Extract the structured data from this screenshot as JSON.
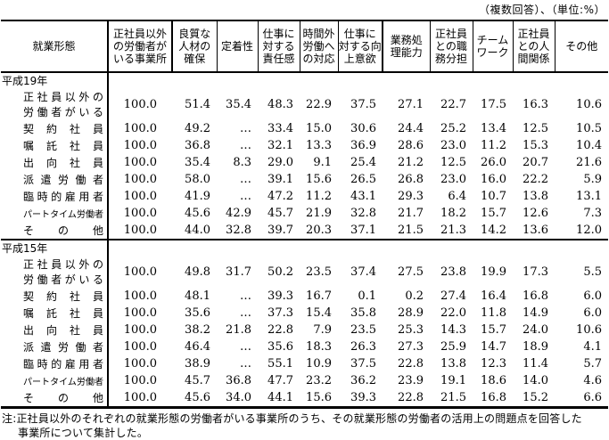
{
  "unit_note": "（複数回答）、（単位:%）",
  "table": {
    "corner_header": "就業形態",
    "columns": [
      "正社員以外\nの労働者が\nいる事業所",
      "良質な\n人材の\n確保",
      "定着性",
      "仕事に\n対する\n責任感",
      "時間外\n労働へ\nの対応",
      "仕事に\n対する向\n上意欲",
      "業務処\n理能力",
      "正社員\nとの職\n務分担",
      "チーム\nワーク",
      "正社員\nとの人\n間関係",
      "その他"
    ],
    "sections": [
      {
        "label": "平成19年",
        "rows": [
          {
            "label": "正社員以外の\n労働者がいる",
            "values": [
              "100.0",
              "51.4",
              "35.4",
              "48.3",
              "22.9",
              "37.5",
              "27.1",
              "22.7",
              "17.5",
              "16.3",
              "10.6"
            ]
          },
          {
            "label": "契約社員",
            "values": [
              "100.0",
              "49.2",
              "…",
              "33.4",
              "15.0",
              "30.6",
              "24.4",
              "25.2",
              "13.4",
              "12.5",
              "10.5"
            ]
          },
          {
            "label": "嘱託社員",
            "values": [
              "100.0",
              "36.8",
              "…",
              "32.1",
              "13.3",
              "36.9",
              "28.6",
              "23.0",
              "11.2",
              "15.3",
              "10.4"
            ]
          },
          {
            "label": "出向社員",
            "values": [
              "100.0",
              "35.4",
              "8.3",
              "29.0",
              "9.1",
              "25.4",
              "21.2",
              "12.5",
              "26.0",
              "20.7",
              "21.6"
            ]
          },
          {
            "label": "派遣労働者",
            "values": [
              "100.0",
              "58.0",
              "…",
              "39.1",
              "15.6",
              "26.5",
              "26.8",
              "23.0",
              "16.0",
              "22.2",
              "5.9"
            ]
          },
          {
            "label": "臨時的雇用者",
            "values": [
              "100.0",
              "41.9",
              "…",
              "47.2",
              "11.2",
              "43.1",
              "29.3",
              "6.4",
              "10.7",
              "13.8",
              "13.1"
            ]
          },
          {
            "label": "パートタイム労働者",
            "values": [
              "100.0",
              "45.6",
              "42.9",
              "45.7",
              "21.9",
              "32.8",
              "21.7",
              "18.2",
              "15.7",
              "12.6",
              "7.3"
            ]
          },
          {
            "label": "その他",
            "values": [
              "100.0",
              "44.0",
              "32.8",
              "39.7",
              "20.3",
              "37.1",
              "21.5",
              "21.3",
              "14.2",
              "13.6",
              "12.0"
            ]
          }
        ]
      },
      {
        "label": "平成15年",
        "rows": [
          {
            "label": "正社員以外の\n労働者がいる",
            "values": [
              "100.0",
              "49.8",
              "31.7",
              "50.2",
              "23.5",
              "37.4",
              "27.5",
              "23.8",
              "19.9",
              "17.3",
              "5.5"
            ]
          },
          {
            "label": "契約社員",
            "values": [
              "100.0",
              "48.1",
              "…",
              "39.3",
              "16.7",
              "0.1",
              "0.2",
              "27.4",
              "16.4",
              "16.8",
              "6.0"
            ]
          },
          {
            "label": "嘱託社員",
            "values": [
              "100.0",
              "35.6",
              "…",
              "37.3",
              "15.4",
              "35.8",
              "28.9",
              "22.0",
              "11.8",
              "14.9",
              "6.0"
            ]
          },
          {
            "label": "出向社員",
            "values": [
              "100.0",
              "38.2",
              "21.8",
              "22.8",
              "7.9",
              "23.5",
              "25.3",
              "14.3",
              "15.7",
              "24.0",
              "10.6"
            ]
          },
          {
            "label": "派遣労働者",
            "values": [
              "100.0",
              "46.4",
              "…",
              "35.6",
              "18.3",
              "26.3",
              "27.3",
              "25.9",
              "14.7",
              "18.9",
              "4.1"
            ]
          },
          {
            "label": "臨時的雇用者",
            "values": [
              "100.0",
              "38.9",
              "…",
              "55.1",
              "10.9",
              "37.5",
              "22.8",
              "13.8",
              "12.3",
              "11.4",
              "5.7"
            ]
          },
          {
            "label": "パートタイム労働者",
            "values": [
              "100.0",
              "45.7",
              "36.8",
              "47.7",
              "23.2",
              "36.2",
              "23.9",
              "19.1",
              "18.6",
              "14.0",
              "4.6"
            ]
          },
          {
            "label": "その他",
            "values": [
              "100.0",
              "45.6",
              "34.0",
              "44.1",
              "15.6",
              "39.3",
              "22.8",
              "21.5",
              "16.8",
              "15.2",
              "6.6"
            ]
          }
        ]
      }
    ]
  },
  "note": {
    "line1": "注:正社員以外のそれぞれの就業形態の労働者がいる事業所のうち、その就業形態の労働者の活用上の問題点を回答した",
    "line2": "事業所について集計した。"
  }
}
